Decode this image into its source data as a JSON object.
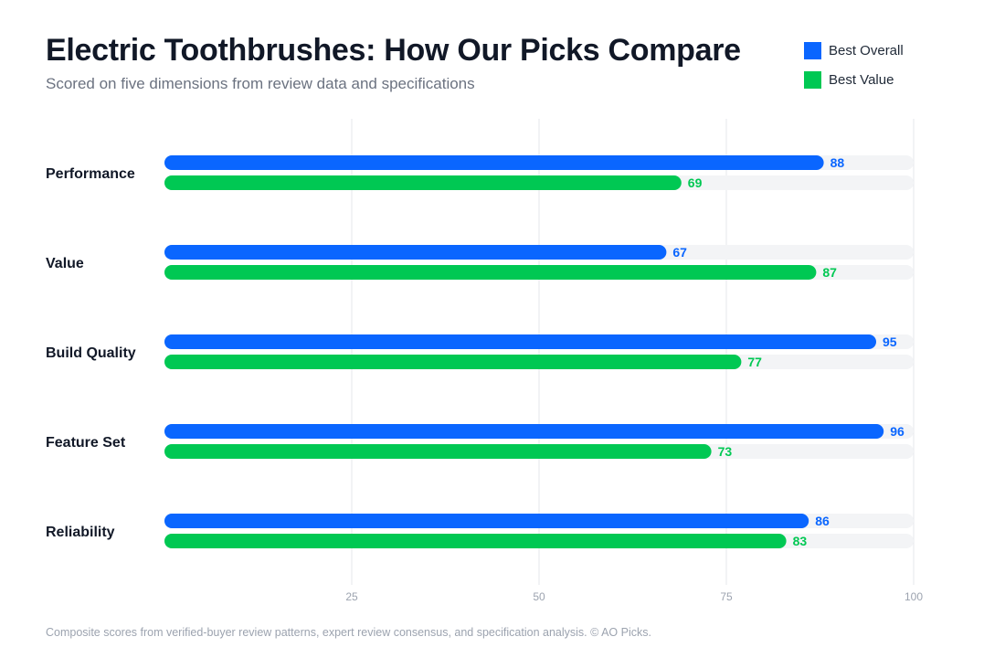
{
  "header": {
    "title": "Electric Toothbrushes: How Our Picks Compare",
    "subtitle": "Scored on five dimensions from review data and specifications"
  },
  "legend": [
    {
      "label": "Best Overall",
      "color": "#0a66ff"
    },
    {
      "label": "Best Value",
      "color": "#00c853"
    }
  ],
  "footnote": "Composite scores from verified-buyer review patterns, expert review consensus, and specification analysis. © AO Picks.",
  "chart_data": {
    "type": "bar",
    "orientation": "horizontal",
    "title": "Electric Toothbrushes: How Our Picks Compare",
    "subtitle": "Scored on five dimensions from review data and specifications",
    "categories": [
      "Performance",
      "Value",
      "Build Quality",
      "Feature Set",
      "Reliability"
    ],
    "series": [
      {
        "name": "Best Overall",
        "color": "#0a66ff",
        "values": [
          88,
          67,
          95,
          96,
          86
        ]
      },
      {
        "name": "Best Value",
        "color": "#00c853",
        "values": [
          69,
          87,
          77,
          73,
          83
        ]
      }
    ],
    "xlim": [
      0,
      100
    ],
    "x_ticks": [
      25,
      50,
      75,
      100
    ],
    "track_color": "#f3f4f6",
    "grid": true,
    "legend_position": "top-right",
    "data_labels": true
  }
}
